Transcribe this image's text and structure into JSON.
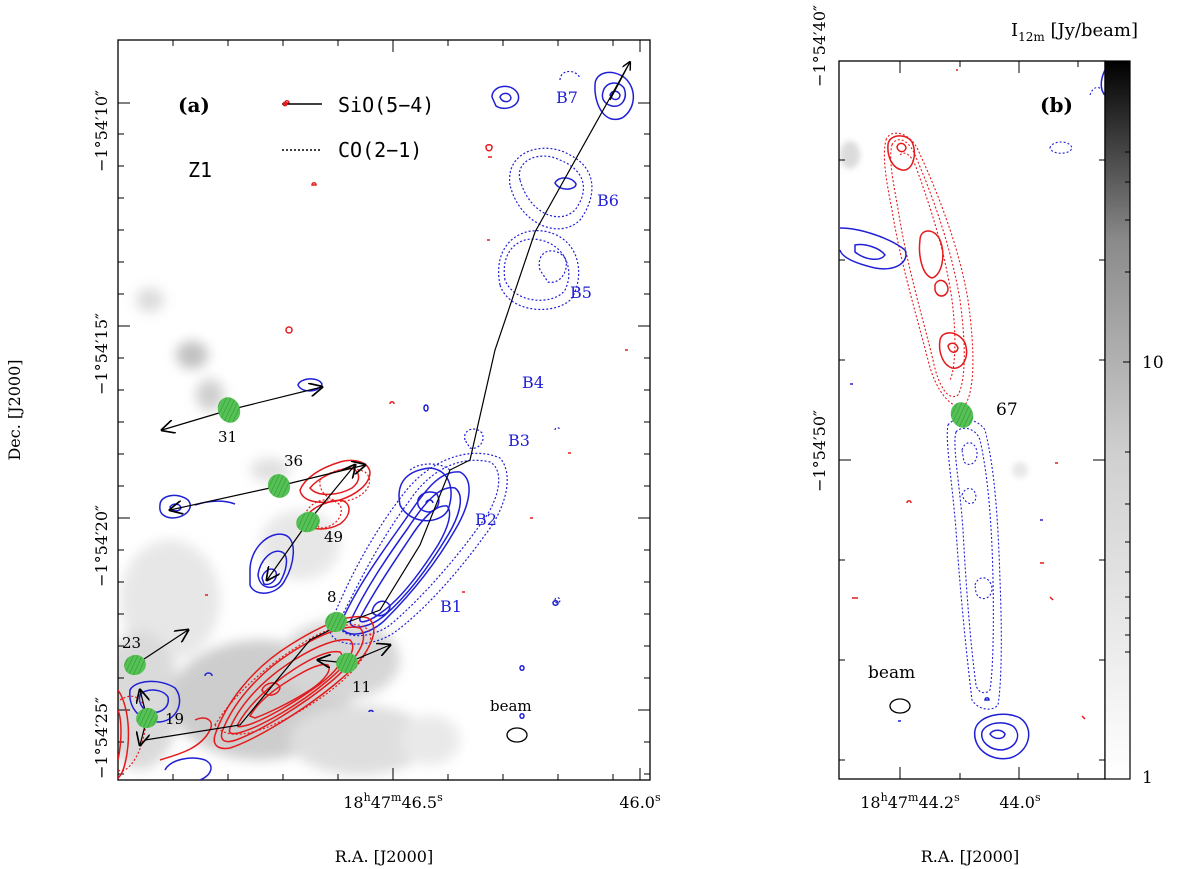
{
  "chart_data": [
    {
      "panel": "(a)",
      "type": "contour-map",
      "region": "Z1",
      "xlabel": "R.A. [J2000]",
      "ylabel": "Dec. [J2000]",
      "x_ticks": [
        "18h47m46.5s",
        "46.0s"
      ],
      "y_ticks": [
        "-1°54'10\"",
        "-1°54'15\"",
        "-1°54'20\"",
        "-1°54'25\""
      ],
      "legend": [
        {
          "label": "SiO(5-4)",
          "style": "solid"
        },
        {
          "label": "CO(2-1)",
          "style": "dotted"
        }
      ],
      "knots": [
        "B1",
        "B2",
        "B3",
        "B4",
        "B5",
        "B6",
        "B7"
      ],
      "sources": [
        "8",
        "11",
        "19",
        "23",
        "31",
        "36",
        "49"
      ],
      "beam_label": "beam",
      "colors": {
        "redshifted": "#e41a1c",
        "blueshifted": "#1f1fd6",
        "source": "#4cbb4c"
      }
    },
    {
      "panel": "(b)",
      "type": "contour-map",
      "xlabel": "R.A. [J2000]",
      "ylabel": "",
      "x_ticks": [
        "18h47m44.2s",
        "44.0s"
      ],
      "y_ticks": [
        "-1°54'40\"",
        "-1°54'50\""
      ],
      "sources": [
        "67"
      ],
      "beam_label": "beam",
      "colorbar": {
        "label": "I12m [Jy/beam]",
        "ticks": [
          1,
          10
        ],
        "scale": "log"
      }
    }
  ],
  "text": {
    "a_panel": "(a)",
    "a_region": "Z1",
    "a_leg_sio": "SiO(5−4)",
    "a_leg_co": "CO(2−1)",
    "a_y1_main": "−1°54′10″",
    "a_y2_main": "−1°54′15″",
    "a_y3_main": "−1°54′20″",
    "a_y4_main": "−1°54′25″",
    "a_x1_hh": "18",
    "a_x1_h": "h",
    "a_x1_mm": "47",
    "a_x1_m": "m",
    "a_x1_ss": "46.5",
    "a_x1_s": "s",
    "a_x2": "46.0",
    "a_x2_s": "s",
    "a_xlabel": "R.A. [J2000]",
    "a_ylabel": "Dec. [J2000]",
    "beam": "beam",
    "b_panel": "(b)",
    "b_y1": "−1°54′40″",
    "b_y2": "−1°54′50″",
    "b_x1_hh": "18",
    "b_x1_h": "h",
    "b_x1_mm": "47",
    "b_x1_m": "m",
    "b_x1_ss": "44.2",
    "b_x1_s": "s",
    "b_x2": "44.0",
    "b_x2_s": "s",
    "b_xlabel": "R.A. [J2000]",
    "cb_label_main": "I",
    "cb_label_sub": "12m",
    "cb_label_unit": " [Jy/beam]",
    "cb_10": "10",
    "cb_1": "1",
    "k_B1": "B1",
    "k_B2": "B2",
    "k_B3": "B3",
    "k_B4": "B4",
    "k_B5": "B5",
    "k_B6": "B6",
    "k_B7": "B7",
    "s_8": "8",
    "s_11": "11",
    "s_19": "19",
    "s_23": "23",
    "s_31": "31",
    "s_36": "36",
    "s_49": "49",
    "s_67": "67"
  }
}
